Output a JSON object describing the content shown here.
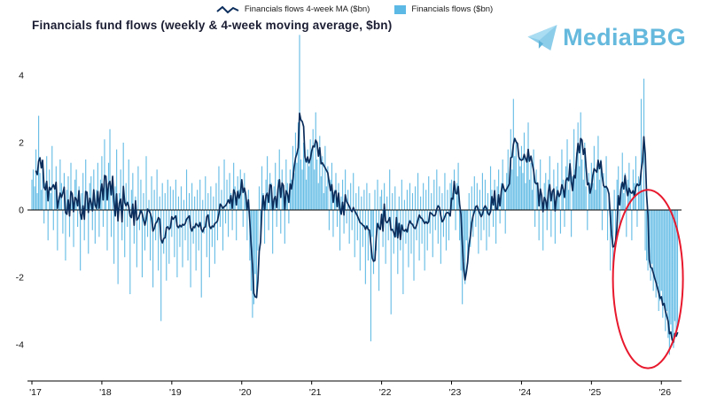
{
  "title": "Financials fund flows (weekly & 4-week moving average, $bn)",
  "legend": {
    "ma_label": "Financials flows 4-week MA ($bn)",
    "flows_label": "Financials flows ($bn)"
  },
  "logo": {
    "text": "MediaBBG"
  },
  "colors": {
    "ma_line": "#0b2d5c",
    "flows_bar": "#5cb8e4",
    "annotation": "#e8182d",
    "axis": "#000000",
    "tick_text": "#111111",
    "title_text": "#1b1d33",
    "logo_blue": "#65b9dd"
  },
  "chart_data": {
    "type": "bar+line",
    "title": "Financials fund flows (weekly & 4-week moving average, $bn)",
    "frequency": "weekly",
    "x_tick_labels": [
      "'17",
      "'18",
      "'19",
      "'20",
      "'21",
      "'22",
      "'23",
      "'24",
      "'25",
      "'26"
    ],
    "y_ticks": [
      -4,
      -2,
      0,
      2,
      4
    ],
    "ylim": [
      -5.1,
      5.1
    ],
    "grid": false,
    "legend_position": "top",
    "series": [
      {
        "name": "Financials flows ($bn)",
        "type": "bar",
        "color": "#5cb8e4",
        "values_by_year": [
          {
            "year": "2017",
            "values": [
              0.9,
              1.2,
              0.7,
              1.8,
              0.5,
              2.8,
              1.1,
              0.6,
              1.4,
              -0.4,
              0.8,
              1.6,
              -0.9,
              1.2,
              0.5,
              1.9,
              -0.6,
              0.7,
              1.3,
              -1.2,
              0.4,
              1.5,
              0.8,
              -0.7,
              1.1,
              -1.5,
              0.6,
              1.0,
              -0.8,
              1.4,
              0.3,
              -1.1,
              0.9,
              1.2,
              -0.5,
              0.7,
              -1.8,
              0.5,
              1.1,
              -0.9,
              1.5,
              0.4,
              -1.3,
              0.8,
              1.0,
              -0.6,
              1.2,
              -1.0,
              0.6,
              1.4,
              -0.8,
              0.9
            ]
          },
          {
            "year": "2018",
            "values": [
              1.6,
              -0.5,
              2.1,
              0.8,
              -1.2,
              1.4,
              2.4,
              -0.8,
              1.0,
              -1.6,
              0.7,
              1.8,
              -2.2,
              0.5,
              1.2,
              -0.9,
              2.0,
              -1.4,
              0.8,
              -0.5,
              1.5,
              -2.5,
              0.6,
              1.1,
              -1.0,
              0.4,
              -1.7,
              1.3,
              -0.6,
              0.9,
              -2.0,
              0.5,
              -1.2,
              1.6,
              -0.8,
              0.3,
              -1.5,
              1.0,
              -2.3,
              0.6,
              -0.9,
              1.2,
              -1.8,
              0.4,
              -3.3,
              0.8,
              -1.3,
              0.5,
              -2.1,
              0.9,
              -1.6,
              0.7
            ]
          },
          {
            "year": "2019",
            "values": [
              -0.8,
              0.6,
              -1.4,
              0.9,
              -2.0,
              0.4,
              -1.1,
              0.7,
              -1.7,
              0.3,
              -0.9,
              1.2,
              -1.5,
              0.5,
              -2.3,
              0.8,
              -1.0,
              0.4,
              -1.8,
              0.6,
              -1.2,
              0.9,
              -2.6,
              0.3,
              -0.7,
              1.0,
              -1.4,
              0.5,
              -2.0,
              0.7,
              -1.1,
              0.4,
              -1.6,
              0.8,
              -0.9,
              1.3,
              -0.5,
              0.6,
              -1.2,
              1.5,
              -0.4,
              0.9,
              -0.8,
              1.1,
              0.5,
              -0.6,
              1.4,
              0.7,
              -0.9,
              1.0,
              0.6,
              1.2
            ]
          },
          {
            "year": "2020",
            "values": [
              0.8,
              -0.5,
              1.1,
              0.4,
              -0.9,
              0.6,
              -1.5,
              -2.4,
              -3.2,
              -2.8,
              -1.9,
              -2.5,
              -1.2,
              0.7,
              -0.8,
              1.3,
              0.5,
              -1.0,
              0.9,
              1.6,
              -0.6,
              1.1,
              0.8,
              -1.3,
              0.7,
              1.4,
              -0.5,
              0.9,
              1.8,
              -0.7,
              1.2,
              0.6,
              -1.0,
              1.5,
              0.8,
              -0.4,
              1.2,
              0.9,
              1.9,
              1.1,
              2.3,
              1.4,
              2.6,
              5.2,
              1.5,
              1.2,
              2.0,
              1.6,
              0.9,
              1.8,
              1.3,
              2.1
            ]
          },
          {
            "year": "2021",
            "values": [
              1.8,
              2.4,
              1.2,
              2.9,
              1.5,
              0.8,
              2.2,
              1.0,
              1.6,
              0.5,
              1.9,
              0.7,
              1.3,
              -0.6,
              0.9,
              1.4,
              -0.8,
              0.6,
              1.1,
              -0.5,
              0.8,
              -1.2,
              0.4,
              0.9,
              -0.7,
              1.2,
              -0.4,
              0.6,
              -1.0,
              0.8,
              -0.6,
              1.1,
              -1.4,
              0.5,
              -0.9,
              0.7,
              -1.8,
              0.4,
              -1.1,
              0.6,
              -2.2,
              0.8,
              -1.5,
              0.5,
              -3.9,
              -0.8,
              -1.9,
              0.6,
              -1.2,
              0.9,
              -2.4,
              0.4
            ]
          },
          {
            "year": "2022",
            "values": [
              0.6,
              -1.1,
              0.8,
              -1.6,
              0.4,
              -0.9,
              1.2,
              -3.1,
              0.5,
              -1.3,
              0.7,
              -0.8,
              -1.9,
              0.4,
              -1.2,
              0.9,
              -2.5,
              0.3,
              -1.0,
              0.6,
              -1.7,
              0.8,
              -1.3,
              0.5,
              -2.1,
              0.7,
              -0.9,
              1.1,
              -1.5,
              0.4,
              -1.0,
              0.8,
              -1.8,
              0.6,
              -1.2,
              1.0,
              -0.7,
              0.5,
              -1.4,
              0.9,
              -0.6,
              1.2,
              -1.0,
              0.7,
              -1.6,
              0.5,
              -0.8,
              1.1,
              -1.2,
              0.6,
              -0.9,
              0.8
            ]
          },
          {
            "year": "2023",
            "values": [
              0.9,
              0.5,
              1.2,
              -0.6,
              0.8,
              1.4,
              -0.9,
              -1.8,
              -2.8,
              -1.5,
              -2.2,
              -0.9,
              -1.6,
              0.5,
              -1.1,
              0.7,
              -0.8,
              1.0,
              -0.5,
              0.8,
              -1.3,
              0.6,
              -0.9,
              1.1,
              -0.6,
              0.9,
              -1.2,
              0.5,
              -0.8,
              1.3,
              0.6,
              -0.5,
              0.9,
              -1.0,
              0.7,
              1.2,
              -0.4,
              0.8,
              1.5,
              0.6,
              -0.7,
              1.1,
              1.8,
              0.9,
              2.4,
              1.2,
              3.3,
              1.6,
              2.0,
              1.0,
              1.7,
              1.3
            ]
          },
          {
            "year": "2024",
            "values": [
              1.9,
              1.1,
              2.3,
              0.8,
              1.5,
              2.6,
              0.9,
              1.4,
              0.6,
              1.8,
              -0.5,
              1.2,
              0.7,
              -0.9,
              1.5,
              0.4,
              -1.2,
              0.8,
              1.1,
              -0.6,
              0.9,
              1.6,
              -0.8,
              0.5,
              1.2,
              -1.0,
              0.7,
              1.4,
              0.5,
              -0.7,
              1.8,
              0.9,
              -0.5,
              1.3,
              2.1,
              0.6,
              1.5,
              -0.8,
              1.0,
              2.4,
              1.2,
              1.7,
              2.6,
              1.3,
              2.9,
              1.5,
              0.9,
              2.0,
              0.7,
              -0.6,
              1.1,
              0.8
            ]
          },
          {
            "year": "2025",
            "values": [
              1.4,
              0.8,
              1.9,
              0.6,
              1.2,
              2.2,
              0.9,
              1.5,
              -0.6,
              1.1,
              0.7,
              1.6,
              -0.9,
              0.5,
              -1.8,
              -0.7,
              -2.4,
              0.6,
              -1.1,
              0.9,
              1.3,
              -0.5,
              0.8,
              1.7,
              0.5,
              1.1,
              -0.8,
              0.9,
              1.4,
              0.6,
              -0.9,
              1.2,
              0.8,
              1.6,
              -0.5,
              1.0,
              0.9,
              3.3,
              0.6,
              3.9,
              -1.2,
              -1.5,
              -1.8,
              -1.4,
              -2.1,
              -1.6,
              -2.4,
              -2.0,
              -2.6,
              -2.2,
              -3.0,
              -2.7
            ]
          },
          {
            "year": "2026",
            "values": [
              -2.4,
              -3.2,
              -2.8,
              -3.6,
              -3.0,
              -3.8,
              -4.3,
              -3.4,
              -3.9,
              -4.1,
              -3.3,
              -3.7,
              -3.5
            ]
          }
        ]
      },
      {
        "name": "Financials flows 4-week MA ($bn)",
        "type": "line",
        "color": "#0b2d5c",
        "derived_from": "4-week moving average of the weekly Financials flows series"
      }
    ],
    "annotation": {
      "shape": "ellipse",
      "note": "heavy outflows in late 2025 into early 2026 circled in red",
      "x_center_week_index": 458,
      "x_radius_weeks": 26,
      "y_center": -2.05,
      "y_radius": 2.65,
      "color": "#e8182d"
    }
  }
}
